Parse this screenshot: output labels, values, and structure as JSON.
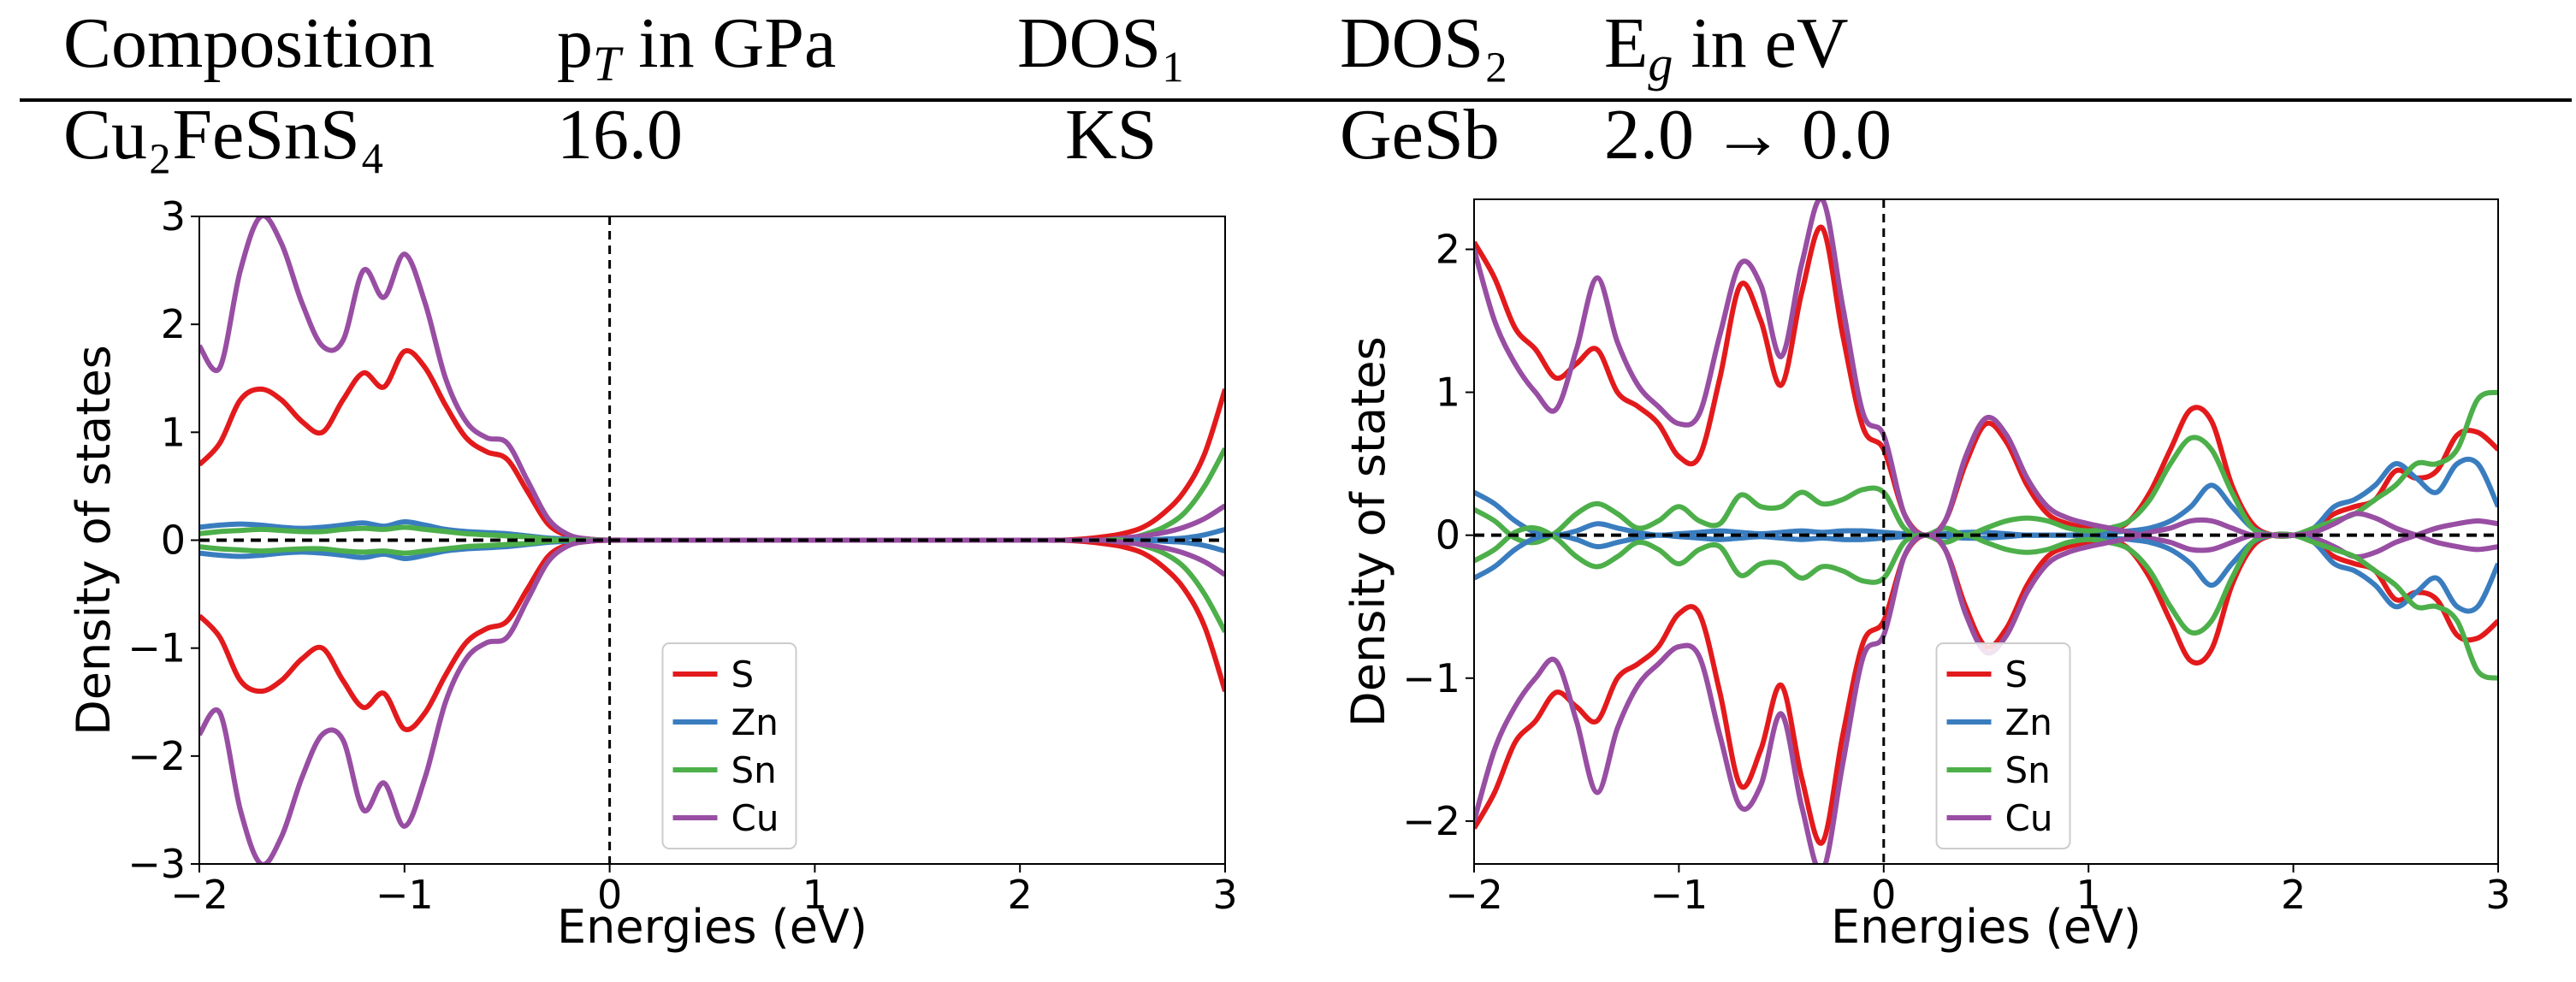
{
  "table": {
    "header": [
      "Composition",
      {
        "base": "p",
        "sub": "T",
        "rest": " in GPa"
      },
      "DOS₁",
      "DOS₂",
      {
        "base": "E",
        "sub": "g",
        "rest": " in eV"
      }
    ],
    "row": [
      "Cu₂FeSnS₄",
      "16.0",
      "KS",
      "GeSb",
      "2.0 → 0.0"
    ]
  },
  "chart_data": [
    {
      "type": "line",
      "xlabel": "Energies (eV)",
      "ylabel": "Density of states",
      "legend": "lower center",
      "xlim": [
        -2,
        3
      ],
      "ylim": [
        -3,
        3
      ],
      "xticks": [
        {
          "value": -2,
          "label": "−2"
        },
        {
          "value": -1,
          "label": "−1"
        },
        0,
        1,
        2,
        3
      ],
      "yticks": [
        {
          "value": -3,
          "label": "−3"
        },
        {
          "value": -2,
          "label": "−2"
        },
        {
          "value": -1,
          "label": "−1"
        },
        0,
        1,
        2,
        3
      ],
      "x": [
        -2.0,
        -1.9,
        -1.8,
        -1.7,
        -1.6,
        -1.5,
        -1.4,
        -1.3,
        -1.2,
        -1.1,
        -1.0,
        -0.9,
        -0.8,
        -0.7,
        -0.6,
        -0.5,
        -0.4,
        -0.3,
        -0.2,
        -0.1,
        0.0,
        0.1,
        0.2,
        0.3,
        0.4,
        0.5,
        0.6,
        0.7,
        0.8,
        0.9,
        1.0,
        1.1,
        1.2,
        1.3,
        1.4,
        1.5,
        1.6,
        1.7,
        1.8,
        1.9,
        2.0,
        2.1,
        2.2,
        2.3,
        2.4,
        2.5,
        2.6,
        2.7,
        2.8,
        2.9,
        3.0
      ],
      "series": [
        {
          "name": "S",
          "color": "#e31a1c",
          "values": [
            0.7,
            0.9,
            1.3,
            1.4,
            1.3,
            1.1,
            1.0,
            1.3,
            1.55,
            1.42,
            1.75,
            1.6,
            1.25,
            0.95,
            0.82,
            0.75,
            0.45,
            0.15,
            0.04,
            0.01,
            0,
            0,
            0,
            0,
            0,
            0,
            0,
            0,
            0,
            0,
            0,
            0,
            0,
            0,
            0,
            0,
            0,
            0,
            0,
            0,
            0,
            0,
            0,
            0.01,
            0.03,
            0.06,
            0.12,
            0.25,
            0.45,
            0.8,
            1.4
          ],
          "values_down": [
            -0.7,
            -0.9,
            -1.3,
            -1.4,
            -1.3,
            -1.1,
            -1.0,
            -1.3,
            -1.55,
            -1.42,
            -1.75,
            -1.6,
            -1.25,
            -0.95,
            -0.82,
            -0.75,
            -0.45,
            -0.15,
            -0.04,
            -0.01,
            0,
            0,
            0,
            0,
            0,
            0,
            0,
            0,
            0,
            0,
            0,
            0,
            0,
            0,
            0,
            0,
            0,
            0,
            0,
            0,
            0,
            0,
            0,
            -0.01,
            -0.03,
            -0.06,
            -0.12,
            -0.25,
            -0.45,
            -0.8,
            -1.4
          ]
        },
        {
          "name": "Zn",
          "color": "#3a7dbf",
          "values": [
            0.12,
            0.14,
            0.15,
            0.14,
            0.12,
            0.11,
            0.12,
            0.14,
            0.16,
            0.13,
            0.17,
            0.14,
            0.1,
            0.08,
            0.07,
            0.06,
            0.04,
            0.02,
            0.01,
            0,
            0,
            0,
            0,
            0,
            0,
            0,
            0,
            0,
            0,
            0,
            0,
            0,
            0,
            0,
            0,
            0,
            0,
            0,
            0,
            0,
            0,
            0,
            0,
            0,
            0,
            0,
            0,
            0.01,
            0.02,
            0.05,
            0.1
          ],
          "values_down": [
            -0.12,
            -0.14,
            -0.15,
            -0.14,
            -0.12,
            -0.11,
            -0.12,
            -0.14,
            -0.16,
            -0.13,
            -0.17,
            -0.14,
            -0.1,
            -0.08,
            -0.07,
            -0.06,
            -0.04,
            -0.02,
            -0.01,
            0,
            0,
            0,
            0,
            0,
            0,
            0,
            0,
            0,
            0,
            0,
            0,
            0,
            0,
            0,
            0,
            0,
            0,
            0,
            0,
            0,
            0,
            0,
            0,
            0,
            0,
            0,
            0,
            -0.01,
            -0.02,
            -0.05,
            -0.1
          ]
        },
        {
          "name": "Sn",
          "color": "#4daf4a",
          "values": [
            0.06,
            0.08,
            0.09,
            0.1,
            0.09,
            0.08,
            0.08,
            0.1,
            0.11,
            0.1,
            0.12,
            0.1,
            0.08,
            0.06,
            0.05,
            0.04,
            0.03,
            0.01,
            0,
            0,
            0,
            0,
            0,
            0,
            0,
            0,
            0,
            0,
            0,
            0,
            0,
            0,
            0,
            0,
            0,
            0,
            0,
            0,
            0,
            0,
            0,
            0,
            0,
            0,
            0,
            0,
            0.05,
            0.12,
            0.25,
            0.5,
            0.85
          ],
          "values_down": [
            -0.06,
            -0.08,
            -0.09,
            -0.1,
            -0.09,
            -0.08,
            -0.08,
            -0.1,
            -0.11,
            -0.1,
            -0.12,
            -0.1,
            -0.08,
            -0.06,
            -0.05,
            -0.04,
            -0.03,
            -0.01,
            0,
            0,
            0,
            0,
            0,
            0,
            0,
            0,
            0,
            0,
            0,
            0,
            0,
            0,
            0,
            0,
            0,
            0,
            0,
            0,
            0,
            0,
            0,
            0,
            0,
            0,
            0,
            0,
            -0.05,
            -0.12,
            -0.25,
            -0.5,
            -0.85
          ]
        },
        {
          "name": "Cu",
          "color": "#984ea3",
          "values": [
            1.8,
            1.6,
            2.5,
            3.0,
            2.75,
            2.2,
            1.8,
            1.85,
            2.5,
            2.25,
            2.65,
            2.2,
            1.5,
            1.1,
            0.95,
            0.9,
            0.55,
            0.2,
            0.05,
            0.01,
            0,
            0,
            0,
            0,
            0,
            0,
            0,
            0,
            0,
            0,
            0,
            0,
            0,
            0,
            0,
            0,
            0,
            0,
            0,
            0,
            0,
            0,
            0,
            0,
            0,
            0.02,
            0.04,
            0.07,
            0.12,
            0.2,
            0.32
          ],
          "values_down": [
            -1.8,
            -1.6,
            -2.5,
            -3.0,
            -2.75,
            -2.2,
            -1.8,
            -1.85,
            -2.5,
            -2.25,
            -2.65,
            -2.2,
            -1.5,
            -1.1,
            -0.95,
            -0.9,
            -0.55,
            -0.2,
            -0.05,
            -0.01,
            0,
            0,
            0,
            0,
            0,
            0,
            0,
            0,
            0,
            0,
            0,
            0,
            0,
            0,
            0,
            0,
            0,
            0,
            0,
            0,
            0,
            0,
            0,
            0,
            0,
            -0.02,
            -0.04,
            -0.07,
            -0.12,
            -0.2,
            -0.32
          ]
        }
      ]
    },
    {
      "type": "line",
      "xlabel": "Energies (eV)",
      "ylabel": "Density of states",
      "legend": "lower center",
      "xlim": [
        -2,
        3
      ],
      "ylim": [
        -2.3,
        2.35
      ],
      "xticks": [
        {
          "value": -2,
          "label": "−2"
        },
        {
          "value": -1,
          "label": "−1"
        },
        0,
        1,
        2,
        3
      ],
      "yticks": [
        {
          "value": -2,
          "label": "−2"
        },
        {
          "value": -1,
          "label": "−1"
        },
        0,
        1,
        2
      ],
      "x": [
        -2.0,
        -1.9,
        -1.8,
        -1.7,
        -1.6,
        -1.5,
        -1.4,
        -1.3,
        -1.2,
        -1.1,
        -1.0,
        -0.9,
        -0.8,
        -0.7,
        -0.6,
        -0.5,
        -0.4,
        -0.3,
        -0.2,
        -0.1,
        0.0,
        0.1,
        0.2,
        0.3,
        0.4,
        0.5,
        0.6,
        0.7,
        0.8,
        0.9,
        1.0,
        1.1,
        1.2,
        1.3,
        1.4,
        1.5,
        1.6,
        1.7,
        1.8,
        1.9,
        2.0,
        2.1,
        2.2,
        2.3,
        2.4,
        2.5,
        2.6,
        2.7,
        2.8,
        2.9,
        3.0
      ],
      "series": [
        {
          "name": "S",
          "color": "#e31a1c",
          "values": [
            2.05,
            1.8,
            1.45,
            1.3,
            1.1,
            1.2,
            1.3,
            1.0,
            0.9,
            0.78,
            0.55,
            0.55,
            1.1,
            1.75,
            1.5,
            1.05,
            1.7,
            2.15,
            1.4,
            0.75,
            0.6,
            0.15,
            0,
            0.1,
            0.5,
            0.78,
            0.65,
            0.35,
            0.15,
            0.08,
            0.05,
            0.03,
            0.1,
            0.3,
            0.6,
            0.88,
            0.8,
            0.35,
            0.08,
            0,
            0,
            0.05,
            0.15,
            0.2,
            0.25,
            0.45,
            0.4,
            0.45,
            0.7,
            0.72,
            0.6
          ],
          "values_down": [
            -2.05,
            -1.8,
            -1.45,
            -1.3,
            -1.1,
            -1.2,
            -1.3,
            -1.0,
            -0.9,
            -0.78,
            -0.55,
            -0.55,
            -1.1,
            -1.75,
            -1.5,
            -1.05,
            -1.7,
            -2.15,
            -1.4,
            -0.75,
            -0.6,
            -0.15,
            0,
            -0.1,
            -0.5,
            -0.78,
            -0.65,
            -0.35,
            -0.15,
            -0.08,
            -0.05,
            -0.03,
            -0.1,
            -0.3,
            -0.6,
            -0.88,
            -0.8,
            -0.35,
            -0.08,
            0,
            0,
            -0.05,
            -0.15,
            -0.2,
            -0.25,
            -0.45,
            -0.4,
            -0.45,
            -0.7,
            -0.72,
            -0.6
          ]
        },
        {
          "name": "Zn",
          "color": "#3a7dbf",
          "values": [
            0.3,
            0.22,
            0.1,
            0.02,
            0,
            0.03,
            0.08,
            0.05,
            0.02,
            0,
            0.01,
            0.02,
            0.03,
            0.02,
            0.01,
            0.02,
            0.03,
            0.02,
            0.03,
            0.03,
            0.02,
            0.01,
            0,
            0.01,
            0.02,
            0.02,
            0.01,
            0,
            0,
            0,
            0.01,
            0.02,
            0.03,
            0.05,
            0.1,
            0.2,
            0.35,
            0.2,
            0.05,
            0,
            0,
            0.05,
            0.2,
            0.25,
            0.35,
            0.5,
            0.4,
            0.3,
            0.5,
            0.5,
            0.2
          ],
          "values_down": [
            -0.3,
            -0.22,
            -0.1,
            -0.02,
            0,
            -0.03,
            -0.08,
            -0.05,
            -0.02,
            0,
            -0.01,
            -0.02,
            -0.03,
            -0.02,
            -0.01,
            -0.02,
            -0.03,
            -0.02,
            -0.03,
            -0.03,
            -0.02,
            -0.01,
            0,
            -0.01,
            -0.02,
            -0.02,
            -0.01,
            0,
            0,
            0,
            -0.01,
            -0.02,
            -0.03,
            -0.05,
            -0.1,
            -0.2,
            -0.35,
            -0.2,
            -0.05,
            0,
            0,
            -0.05,
            -0.2,
            -0.25,
            -0.35,
            -0.5,
            -0.4,
            -0.3,
            -0.5,
            -0.5,
            -0.2
          ]
        },
        {
          "name": "Sn",
          "color": "#4daf4a",
          "values": [
            0.18,
            0.1,
            -0.02,
            -0.05,
            0.02,
            0.15,
            0.22,
            0.15,
            0.05,
            0.1,
            0.2,
            0.1,
            0.08,
            0.28,
            0.2,
            0.2,
            0.3,
            0.22,
            0.25,
            0.32,
            0.3,
            0.05,
            0,
            0.05,
            0,
            0.05,
            0.1,
            0.12,
            0.1,
            0.05,
            0.03,
            0.05,
            0.1,
            0.25,
            0.5,
            0.68,
            0.6,
            0.3,
            0.05,
            0,
            0,
            0.05,
            0.1,
            0.15,
            0.25,
            0.35,
            0.5,
            0.5,
            0.6,
            0.95,
            1.0
          ],
          "values_down": [
            -0.18,
            -0.1,
            0.02,
            0.05,
            -0.02,
            -0.15,
            -0.22,
            -0.15,
            -0.05,
            -0.1,
            -0.2,
            -0.1,
            -0.08,
            -0.28,
            -0.2,
            -0.2,
            -0.3,
            -0.22,
            -0.25,
            -0.32,
            -0.3,
            -0.05,
            0,
            -0.05,
            0,
            -0.05,
            -0.1,
            -0.12,
            -0.1,
            -0.05,
            -0.03,
            -0.05,
            -0.1,
            -0.25,
            -0.5,
            -0.68,
            -0.6,
            -0.3,
            -0.05,
            0,
            0,
            -0.05,
            -0.1,
            -0.15,
            -0.25,
            -0.35,
            -0.5,
            -0.5,
            -0.6,
            -0.95,
            -1.0
          ]
        },
        {
          "name": "Cu",
          "color": "#984ea3",
          "values": [
            2.0,
            1.5,
            1.2,
            1.0,
            0.88,
            1.3,
            1.8,
            1.35,
            1.05,
            0.9,
            0.78,
            0.85,
            1.4,
            1.9,
            1.75,
            1.25,
            1.9,
            2.35,
            1.6,
            0.85,
            0.7,
            0.15,
            0,
            0.1,
            0.55,
            0.82,
            0.7,
            0.4,
            0.2,
            0.12,
            0.08,
            0.05,
            0.02,
            -0.02,
            -0.05,
            -0.1,
            -0.1,
            -0.05,
            0,
            0,
            0,
            -0.02,
            -0.08,
            -0.15,
            -0.12,
            -0.05,
            0,
            0.05,
            0.08,
            0.1,
            0.08
          ],
          "values_down": [
            -2.0,
            -1.5,
            -1.2,
            -1.0,
            -0.88,
            -1.3,
            -1.8,
            -1.35,
            -1.05,
            -0.9,
            -0.78,
            -0.85,
            -1.4,
            -1.9,
            -1.75,
            -1.25,
            -1.9,
            -2.35,
            -1.6,
            -0.85,
            -0.7,
            -0.15,
            0,
            -0.1,
            -0.55,
            -0.82,
            -0.7,
            -0.4,
            -0.2,
            -0.12,
            -0.08,
            -0.05,
            -0.02,
            0.02,
            0.05,
            0.1,
            0.1,
            0.05,
            0,
            0,
            0,
            0.02,
            0.08,
            0.15,
            0.12,
            0.05,
            0,
            -0.05,
            -0.08,
            -0.1,
            -0.08
          ]
        }
      ]
    }
  ]
}
